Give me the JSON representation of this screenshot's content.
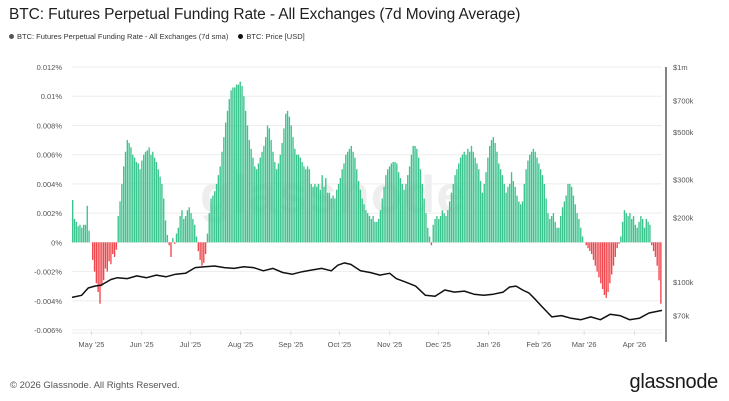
{
  "header": {
    "title": "BTC: Futures Perpetual Funding Rate - All Exchanges (7d Moving Average)"
  },
  "legend": [
    {
      "label": "BTC: Futures Perpetual Funding Rate - All Exchanges (7d sma)",
      "color": "#555555"
    },
    {
      "label": "BTC: Price [USD]",
      "color": "#111111"
    }
  ],
  "footer": {
    "copyright": "© 2026 Glassnode. All Rights Reserved.",
    "brand": "glassnode"
  },
  "watermark": "glassnode",
  "colors": {
    "positive": "#3cc48e",
    "negative": "#f0484e",
    "price": "#111111",
    "grid": "#eeeeee"
  },
  "chart_data": {
    "type": "bar",
    "title": "BTC: Futures Perpetual Funding Rate - All Exchanges (7d Moving Average)",
    "xlabel": "",
    "ylabel": "",
    "ylim": [
      -0.006,
      0.012
    ],
    "y_ticks": [
      "0.012%",
      "0.01%",
      "0.008%",
      "0.006%",
      "0.004%",
      "0.002%",
      "0%",
      "-0.002%",
      "-0.004%",
      "-0.006%"
    ],
    "y_tick_values": [
      0.012,
      0.01,
      0.008,
      0.006,
      0.004,
      0.002,
      0,
      -0.002,
      -0.004,
      -0.006
    ],
    "y2_scale": "log",
    "y2lim": [
      60000,
      1000000
    ],
    "y2_ticks": [
      "$1m",
      "$700k",
      "$500k",
      "$300k",
      "$200k",
      "$100k",
      "$70k"
    ],
    "y2_tick_values": [
      1000000,
      700000,
      500000,
      300000,
      200000,
      100000,
      70000
    ],
    "x_range_days": [
      0,
      364
    ],
    "x_ticks": [
      "May '25",
      "Jun '25",
      "Jul '25",
      "Aug '25",
      "Sep '25",
      "Oct '25",
      "Nov '25",
      "Dec '25",
      "Jan '26",
      "Feb '26",
      "Mar '26",
      "Apr '26"
    ],
    "x_tick_days": [
      12,
      43,
      73,
      104,
      135,
      165,
      196,
      226,
      257,
      288,
      316,
      347
    ],
    "grid": true,
    "legend_position": "top-left",
    "series": [
      {
        "name": "BTC: Futures Perpetual Funding Rate - All Exchanges (7d sma)",
        "kind": "bar",
        "unit": "%",
        "values": [
          0.0029,
          0.0016,
          0.0014,
          0.0011,
          0.0012,
          0.001,
          0.0012,
          0.0012,
          0.0025,
          0.0008,
          0,
          -0.0012,
          -0.002,
          -0.0028,
          -0.0034,
          -0.0042,
          -0.003,
          -0.0026,
          -0.0018,
          -0.002,
          -0.0013,
          -0.0015,
          -0.0008,
          -0.001,
          -0.0005,
          0.0018,
          0.0028,
          0.004,
          0.0052,
          0.0062,
          0.007,
          0.0068,
          0.0065,
          0.006,
          0.0058,
          0.0055,
          0.0054,
          0.005,
          0.0056,
          0.006,
          0.0062,
          0.0063,
          0.0065,
          0.006,
          0.0062,
          0.0058,
          0.0055,
          0.005,
          0.0045,
          0.004,
          0.003,
          0.0015,
          0.0005,
          -0.0002,
          -0.001,
          0.0003,
          -0.0001,
          0.0006,
          0.001,
          0.0018,
          0.0022,
          0.0016,
          0.0018,
          0.0022,
          0.0024,
          0.002,
          0.0016,
          0.0012,
          0.0004,
          -0.0006,
          -0.0012,
          -0.0016,
          -0.0014,
          -0.0008,
          0.0006,
          0.002,
          0.003,
          0.0032,
          0.0035,
          0.004,
          0.0046,
          0.0052,
          0.0062,
          0.0072,
          0.0082,
          0.009,
          0.0098,
          0.0104,
          0.0106,
          0.0106,
          0.0108,
          0.0108,
          0.011,
          0.0107,
          0.01,
          0.009,
          0.008,
          0.007,
          0.0064,
          0.0058,
          0.0052,
          0.005,
          0.0054,
          0.0058,
          0.0062,
          0.0066,
          0.0072,
          0.008,
          0.0078,
          0.007,
          0.0062,
          0.0055,
          0.005,
          0.0054,
          0.006,
          0.0068,
          0.0078,
          0.0088,
          0.009,
          0.0086,
          0.008,
          0.0072,
          0.0064,
          0.006,
          0.006,
          0.0058,
          0.0055,
          0.0052,
          0.005,
          0.0052,
          0.005,
          0.004,
          0.0038,
          0.004,
          0.0038,
          0.004,
          0.0036,
          0.0046,
          0.0038,
          0.0044,
          0.0034,
          0.0034,
          0.003,
          0.0032,
          0.003,
          0.0036,
          0.004,
          0.0044,
          0.005,
          0.0054,
          0.006,
          0.0062,
          0.0064,
          0.0066,
          0.0062,
          0.0058,
          0.005,
          0.0042,
          0.0036,
          0.003,
          0.0026,
          0.0022,
          0.002,
          0.0018,
          0.0016,
          0.0018,
          0.0014,
          0.0014,
          0.0016,
          0.0022,
          0.003,
          0.0038,
          0.0046,
          0.005,
          0.0052,
          0.0054,
          0.0055,
          0.0055,
          0.0054,
          0.0048,
          0.0044,
          0.004,
          0.0036,
          0.004,
          0.0046,
          0.0052,
          0.006,
          0.0066,
          0.0066,
          0.0064,
          0.0058,
          0.005,
          0.004,
          0.003,
          0.002,
          0.001,
          0.0004,
          -0.0002,
          0.0012,
          0.0016,
          0.0018,
          0.0016,
          0.0018,
          0.0022,
          0.002,
          0.0018,
          0.0022,
          0.0028,
          0.0034,
          0.004,
          0.0046,
          0.005,
          0.0054,
          0.0058,
          0.006,
          0.0062,
          0.006,
          0.0064,
          0.0062,
          0.0066,
          0.0062,
          0.0058,
          0.0054,
          0.005,
          0.0042,
          0.0034,
          0.004,
          0.0048,
          0.0058,
          0.0066,
          0.007,
          0.0072,
          0.0068,
          0.0062,
          0.0054,
          0.005,
          0.0046,
          0.004,
          0.0034,
          0.0038,
          0.004,
          0.0048,
          0.0042,
          0.0038,
          0.0032,
          0.0028,
          0.0026,
          0.0028,
          0.004,
          0.005,
          0.0056,
          0.006,
          0.0062,
          0.0064,
          0.0062,
          0.0058,
          0.0054,
          0.005,
          0.0046,
          0.004,
          0.003,
          0.002,
          0.0016,
          0.0018,
          0.002,
          0.0014,
          0.001,
          0.001,
          0.0018,
          0.0024,
          0.0028,
          0.0032,
          0.004,
          0.004,
          0.0038,
          0.0032,
          0.0026,
          0.002,
          0.0016,
          0.001,
          0.0004,
          0.0,
          -0.0002,
          -0.0004,
          -0.0006,
          -0.0008,
          -0.0012,
          -0.0016,
          -0.002,
          -0.0024,
          -0.0028,
          -0.0032,
          -0.0036,
          -0.0038,
          -0.0034,
          -0.0028,
          -0.0022,
          -0.0016,
          -0.001,
          -0.0004,
          -0.0001,
          0.0004,
          0.0014,
          0.0022,
          0.002,
          0.0018,
          0.002,
          0.0016,
          0.0018,
          0.0012,
          0.001,
          0.0014,
          0.0018,
          0.0016,
          0.001,
          0.0016,
          0.0014,
          0.0012,
          -0.0002,
          -0.0006,
          -0.001,
          -0.0016,
          -0.0026,
          -0.0042
        ]
      },
      {
        "name": "BTC: Price [USD]",
        "kind": "line",
        "unit": "USD",
        "x_days": [
          0,
          6,
          10,
          14,
          18,
          24,
          28,
          34,
          40,
          46,
          52,
          58,
          64,
          70,
          76,
          82,
          88,
          94,
          100,
          106,
          112,
          118,
          124,
          130,
          136,
          142,
          148,
          154,
          160,
          164,
          168,
          172,
          178,
          184,
          190,
          196,
          200,
          206,
          212,
          218,
          224,
          230,
          236,
          242,
          248,
          254,
          260,
          266,
          270,
          274,
          278,
          282,
          286,
          290,
          296,
          302,
          308,
          314,
          320,
          326,
          332,
          338,
          344,
          350,
          356,
          364
        ],
        "values": [
          85000,
          87000,
          94000,
          96000,
          97000,
          103000,
          105000,
          104000,
          107000,
          105000,
          108000,
          106000,
          109000,
          110000,
          117000,
          118000,
          119000,
          117000,
          116000,
          118000,
          117000,
          113000,
          116000,
          111000,
          109000,
          112000,
          114000,
          116000,
          113000,
          120000,
          123000,
          121000,
          113000,
          111000,
          108000,
          110000,
          104000,
          100000,
          96000,
          87000,
          86000,
          92000,
          90000,
          91000,
          88000,
          87000,
          88000,
          90000,
          95000,
          96000,
          92000,
          89000,
          83000,
          77000,
          69000,
          70000,
          68000,
          67000,
          69000,
          67000,
          71000,
          70000,
          67000,
          68000,
          72000,
          74000
        ]
      }
    ]
  }
}
